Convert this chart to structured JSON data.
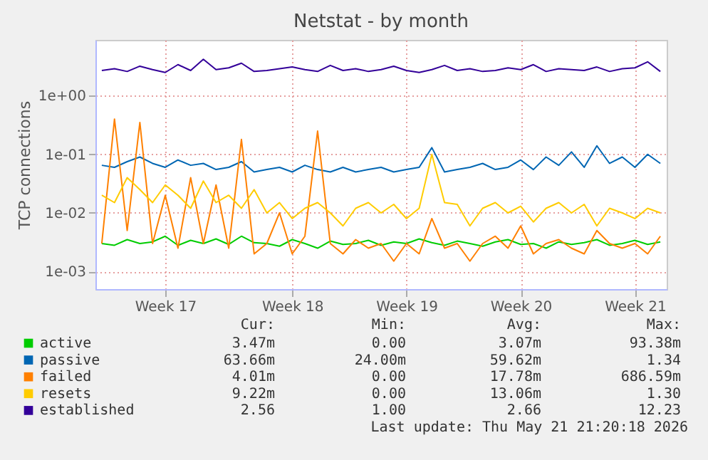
{
  "chart_data": {
    "type": "line",
    "title": "Netstat - by month",
    "ylabel": "TCP connections",
    "log": true,
    "grid": true,
    "legend": "bottom",
    "categories": [
      null,
      null,
      null,
      null,
      null,
      "Week 17",
      null,
      null,
      null,
      null,
      null,
      null,
      null,
      null,
      null,
      "Week 18",
      null,
      null,
      null,
      null,
      null,
      null,
      null,
      null,
      "Week 19",
      null,
      null,
      null,
      null,
      null,
      null,
      null,
      null,
      "Week 20",
      null,
      null,
      null,
      null,
      null,
      null,
      null,
      null,
      "Week 21",
      null,
      null
    ],
    "ylim": [
      0.0005,
      9
    ],
    "yticks": [
      {
        "value": 0.001,
        "label": "1e-03"
      },
      {
        "value": 0.01,
        "label": "1e-02"
      },
      {
        "value": 0.1,
        "label": "1e-01"
      },
      {
        "value": 1,
        "label": "1e+00"
      }
    ],
    "series": [
      {
        "name": "active",
        "color": "#00cc00",
        "values": [
          0.003,
          0.0028,
          0.0035,
          0.003,
          0.0032,
          0.004,
          0.0028,
          0.0034,
          0.003,
          0.0036,
          0.0029,
          0.004,
          0.0031,
          0.003,
          0.0027,
          0.0035,
          0.003,
          0.0025,
          0.0033,
          0.0029,
          0.003,
          0.0034,
          0.0028,
          0.0032,
          0.003,
          0.0036,
          0.0031,
          0.0028,
          0.0033,
          0.003,
          0.0027,
          0.0032,
          0.0035,
          0.0029,
          0.003,
          0.0025,
          0.0032,
          0.0029,
          0.0031,
          0.0035,
          0.0028,
          0.003,
          0.0034,
          0.0029,
          0.0032
        ]
      },
      {
        "name": "passive",
        "color": "#0066b3",
        "values": [
          0.065,
          0.06,
          0.075,
          0.09,
          0.07,
          0.06,
          0.08,
          0.065,
          0.07,
          0.055,
          0.06,
          0.075,
          0.05,
          0.055,
          0.06,
          0.05,
          0.065,
          0.055,
          0.05,
          0.06,
          0.05,
          0.055,
          0.06,
          0.05,
          0.055,
          0.06,
          0.13,
          0.05,
          0.055,
          0.06,
          0.07,
          0.055,
          0.06,
          0.08,
          0.055,
          0.09,
          0.065,
          0.11,
          0.06,
          0.14,
          0.07,
          0.09,
          0.06,
          0.1,
          0.07
        ]
      },
      {
        "name": "failed",
        "color": "#ff8000",
        "values": [
          0.003,
          0.4,
          0.005,
          0.35,
          0.003,
          0.02,
          0.0025,
          0.04,
          0.003,
          0.03,
          0.0025,
          0.18,
          0.002,
          0.003,
          0.01,
          0.002,
          0.004,
          0.25,
          0.003,
          0.002,
          0.0035,
          0.0025,
          0.003,
          0.0015,
          0.003,
          0.002,
          0.008,
          0.0025,
          0.003,
          0.0015,
          0.003,
          0.004,
          0.0025,
          0.006,
          0.002,
          0.003,
          0.0035,
          0.0025,
          0.002,
          0.005,
          0.003,
          0.0025,
          0.003,
          0.002,
          0.004
        ]
      },
      {
        "name": "resets",
        "color": "#ffcc00",
        "values": [
          0.02,
          0.015,
          0.04,
          0.025,
          0.015,
          0.03,
          0.02,
          0.012,
          0.035,
          0.015,
          0.02,
          0.012,
          0.025,
          0.01,
          0.015,
          0.008,
          0.012,
          0.015,
          0.01,
          0.006,
          0.012,
          0.015,
          0.01,
          0.014,
          0.008,
          0.012,
          0.1,
          0.015,
          0.014,
          0.006,
          0.012,
          0.015,
          0.01,
          0.013,
          0.007,
          0.012,
          0.015,
          0.01,
          0.014,
          0.006,
          0.012,
          0.01,
          0.008,
          0.012,
          0.01
        ]
      },
      {
        "name": "established",
        "color": "#330099",
        "values": [
          2.7,
          2.9,
          2.6,
          3.2,
          2.8,
          2.5,
          3.4,
          2.7,
          4.2,
          2.8,
          3.0,
          3.6,
          2.6,
          2.7,
          2.9,
          3.1,
          2.8,
          2.6,
          3.3,
          2.7,
          2.9,
          2.6,
          2.8,
          3.2,
          2.7,
          2.5,
          2.8,
          3.3,
          2.7,
          2.9,
          2.6,
          2.7,
          3.0,
          2.8,
          3.4,
          2.6,
          2.9,
          2.8,
          2.7,
          3.1,
          2.6,
          2.9,
          3.0,
          3.8,
          2.6
        ]
      }
    ],
    "annotations": [
      "Cur:",
      "Min:",
      "Avg:",
      "Max:",
      "3.47m",
      "0.00",
      "3.07m",
      "93.38m",
      "63.66m",
      "24.00m",
      "59.62m",
      "1.34",
      "4.01m",
      "0.00",
      "17.78m",
      "686.59m",
      "9.22m",
      "0.00",
      "13.06m",
      "1.30",
      "2.56",
      "1.00",
      "2.66",
      "12.23",
      "Last update: Thu May 21 21:20:18 2026"
    ]
  }
}
